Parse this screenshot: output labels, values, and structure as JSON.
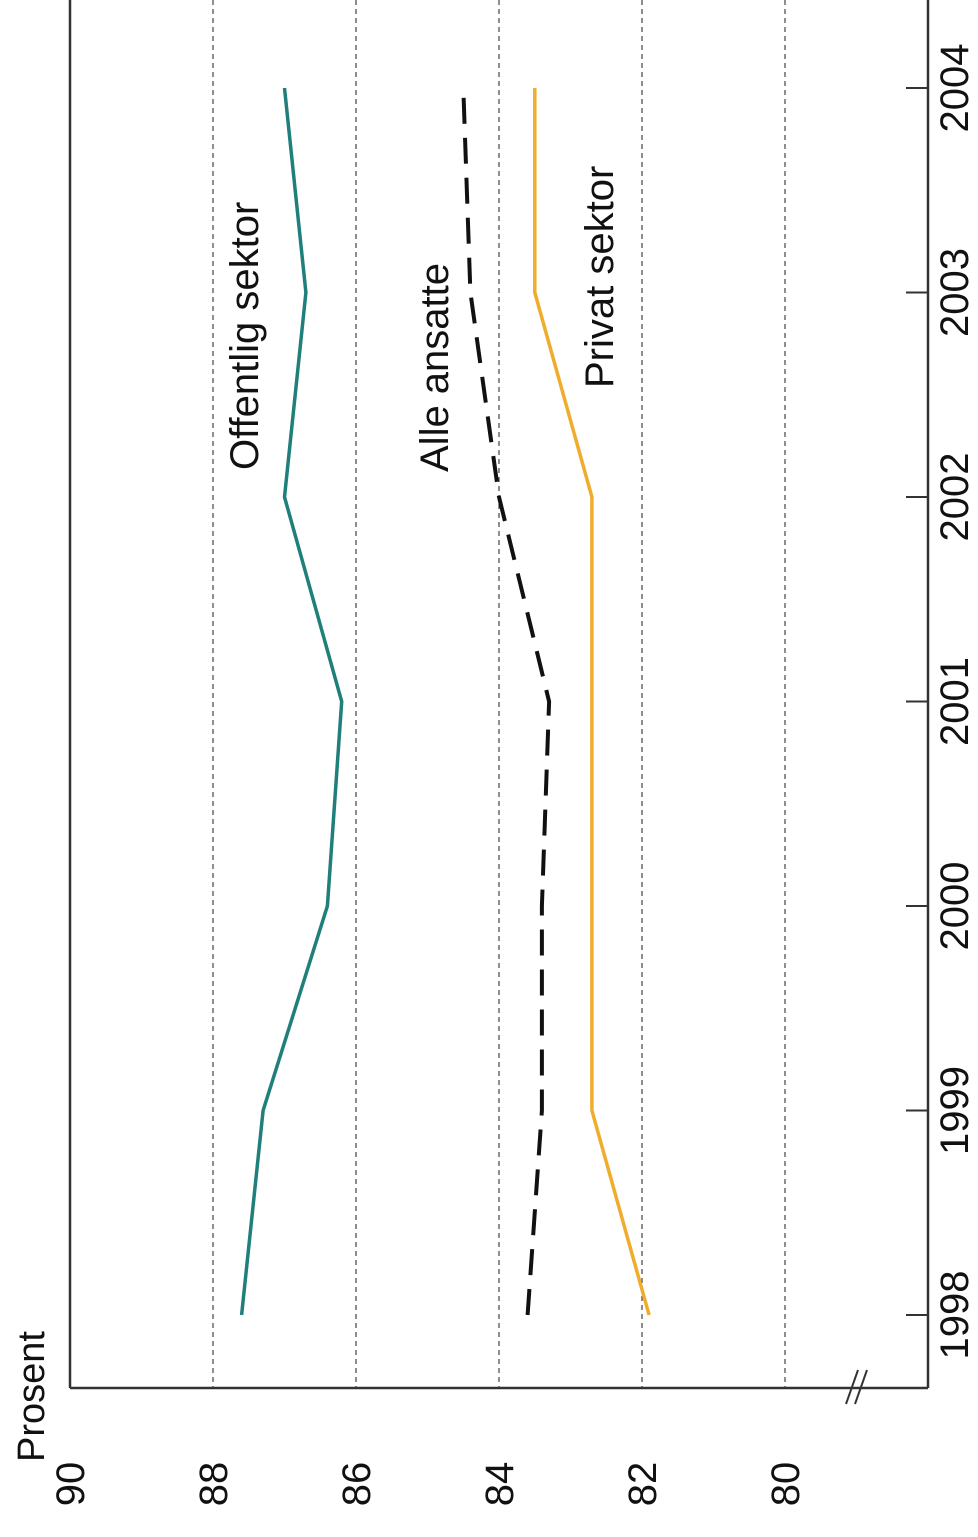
{
  "chart_data": {
    "type": "line",
    "orientation": "rotated-90-clockwise",
    "title": "",
    "ylabel": "Prosent",
    "xlabel": "",
    "categories": [
      "1998",
      "1999",
      "2000",
      "2001",
      "2002",
      "2003",
      "2004"
    ],
    "x_tick_labels": [
      "1998",
      "1999",
      "2000",
      "2001",
      "2002",
      "2003",
      "2004"
    ],
    "y_tick_labels": [
      "90",
      "88",
      "86",
      "84",
      "82",
      "80"
    ],
    "y_ticks": [
      90,
      88,
      86,
      84,
      82,
      80
    ],
    "ylim": [
      78.8,
      90
    ],
    "axis_break": true,
    "grid": true,
    "legend": "inline labels",
    "series": [
      {
        "name": "Offentlig sektor",
        "style": "solid",
        "color": "#1f7f7b",
        "values": [
          87.6,
          87.3,
          86.4,
          86.2,
          87.0,
          86.7,
          87.0
        ]
      },
      {
        "name": "Alle ansatte",
        "style": "dashed",
        "color": "#111111",
        "values": [
          83.6,
          83.4,
          83.4,
          83.3,
          84.0,
          84.4,
          84.5
        ]
      },
      {
        "name": "Privat sektor",
        "style": "solid",
        "color": "#f0ad2d",
        "values": [
          81.9,
          82.7,
          82.7,
          82.7,
          82.7,
          83.5,
          83.5
        ]
      }
    ]
  }
}
